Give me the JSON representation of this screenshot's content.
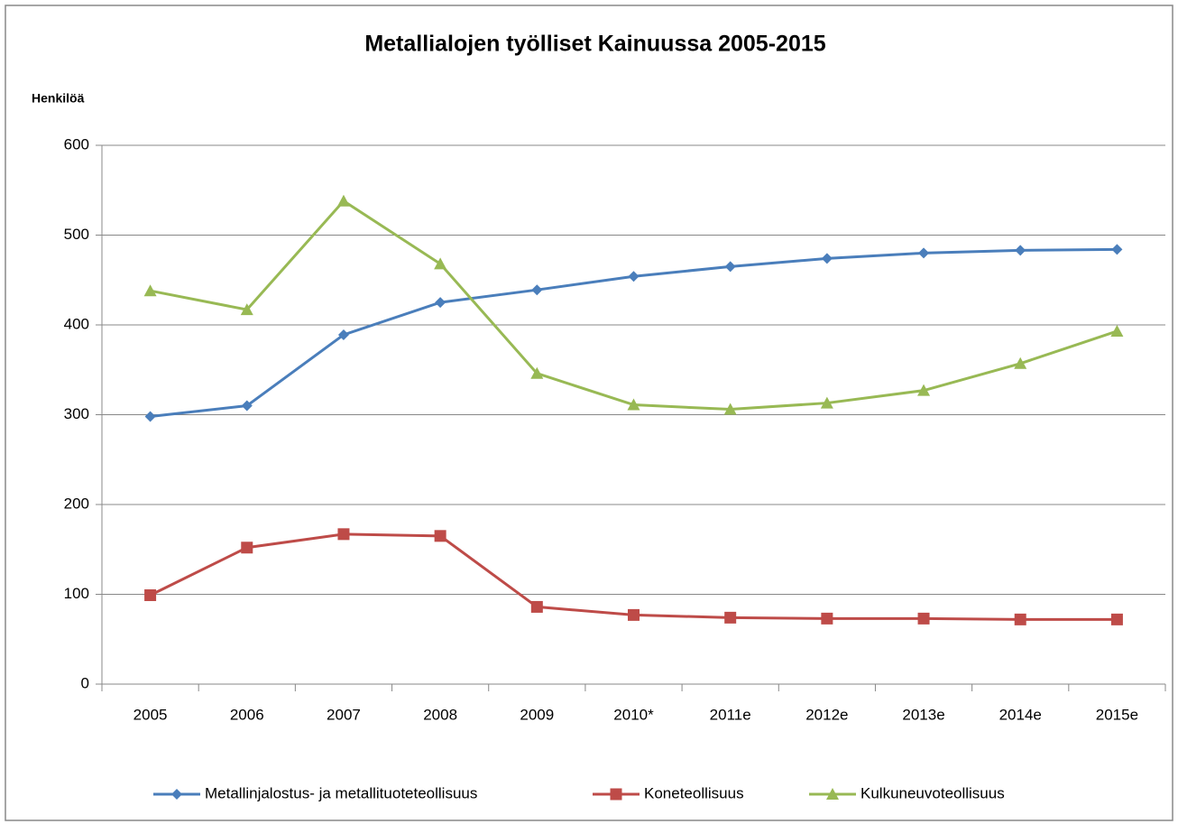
{
  "chart_data": {
    "type": "line",
    "title": "Metallialojen työlliset Kainuussa 2005-2015",
    "y_label": "Henkilöä",
    "categories": [
      "2005",
      "2006",
      "2007",
      "2008",
      "2009",
      "2010*",
      "2011e",
      "2012e",
      "2013e",
      "2014e",
      "2015e"
    ],
    "series": [
      {
        "name": "Metallinjalostus- ja metallituoteteollisuus",
        "color": "#4a7ebb",
        "marker": "diamond",
        "values": [
          298,
          310,
          389,
          425,
          439,
          454,
          465,
          474,
          480,
          483,
          484
        ]
      },
      {
        "name": "Koneteollisuus",
        "color": "#be4b48",
        "marker": "square",
        "values": [
          99,
          152,
          167,
          165,
          86,
          77,
          74,
          73,
          73,
          72,
          72
        ]
      },
      {
        "name": "Kulkuneuvoteollisuus",
        "color": "#98b954",
        "marker": "triangle",
        "values": [
          438,
          417,
          538,
          468,
          346,
          311,
          306,
          313,
          327,
          357,
          393
        ]
      }
    ],
    "ylim": [
      0,
      600
    ],
    "yticks": [
      0,
      100,
      200,
      300,
      400,
      500,
      600
    ],
    "grid": true,
    "legend": "bottom"
  }
}
